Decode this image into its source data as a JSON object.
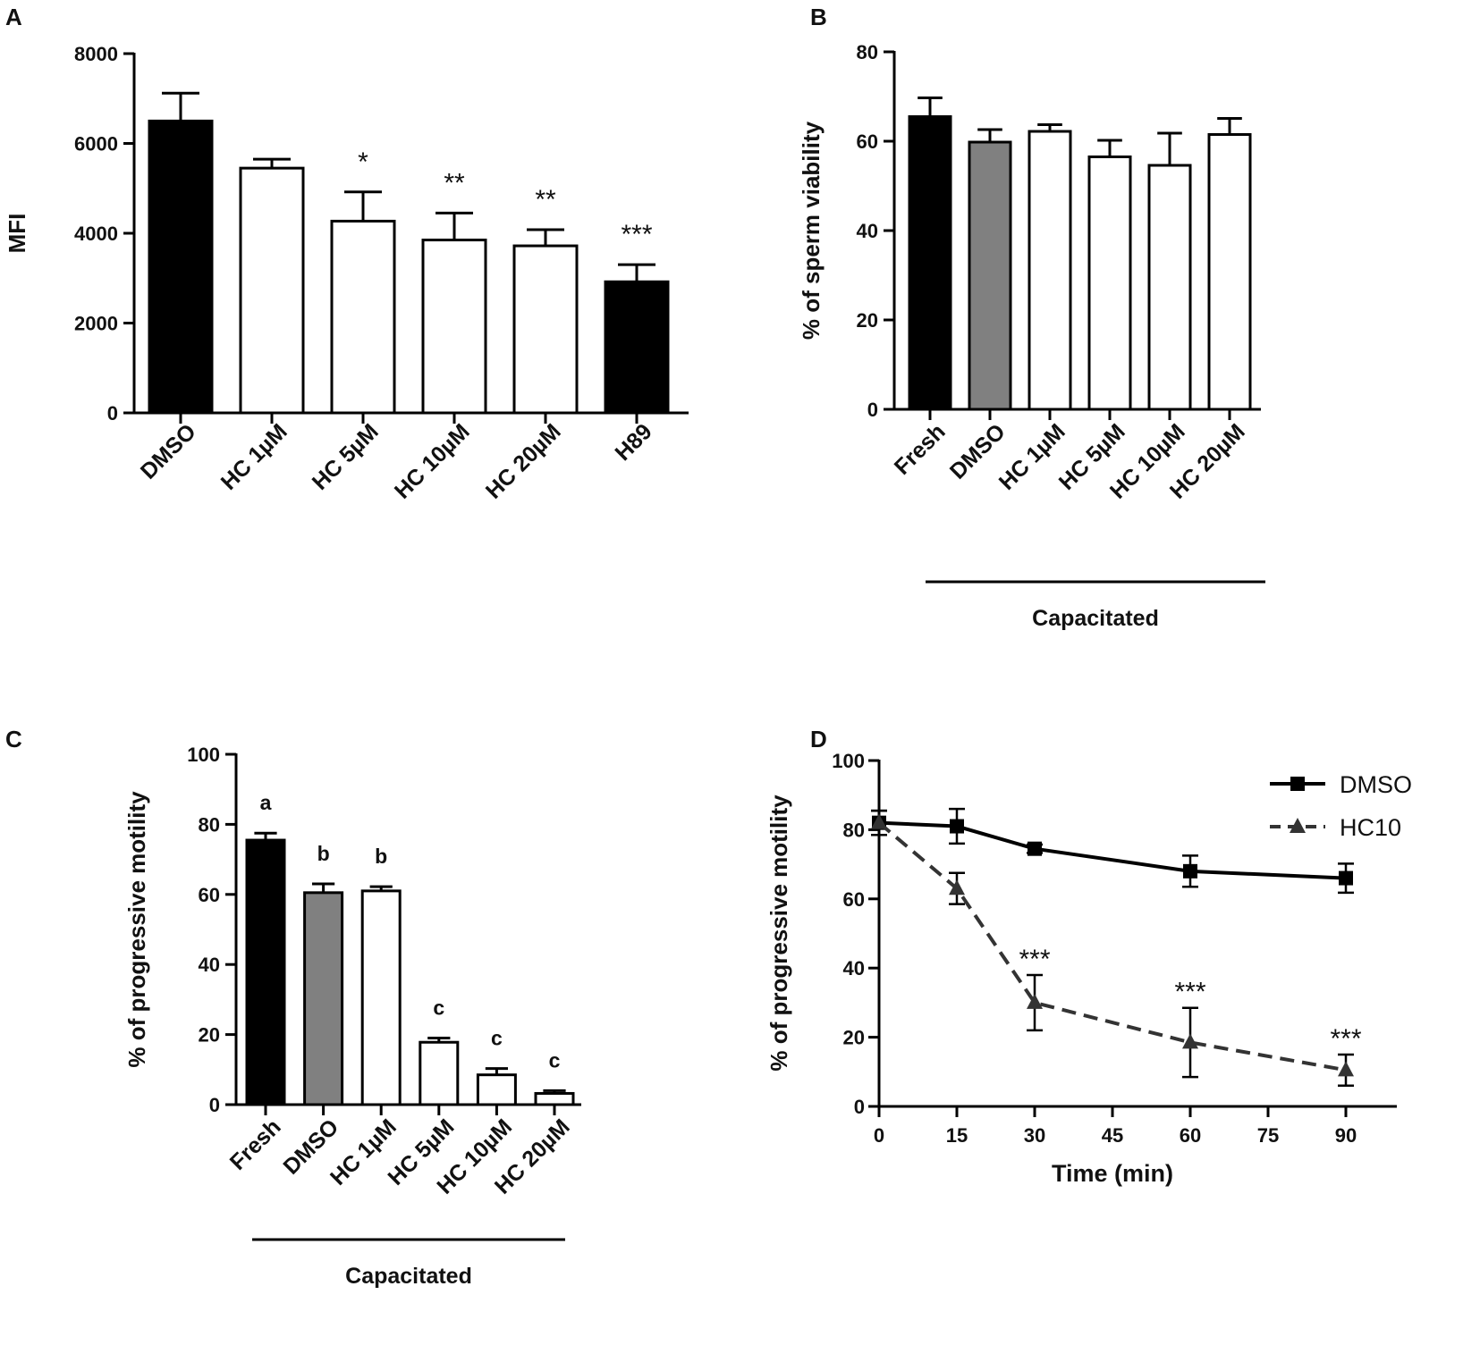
{
  "chart_data": [
    {
      "panel": "A",
      "type": "bar",
      "ylabel": "MFI",
      "xlabel": "",
      "ylim": [
        0,
        8000
      ],
      "yticks": [
        0,
        2000,
        4000,
        6000,
        8000
      ],
      "categories": [
        "DMSO",
        "HC 1µM",
        "HC 5µM",
        "HC 10µM",
        "HC 20µM",
        "H89"
      ],
      "values": [
        6500,
        5450,
        4270,
        3850,
        3720,
        2920
      ],
      "errors": [
        620,
        200,
        650,
        600,
        360,
        380
      ],
      "fills": [
        "#000000",
        "#ffffff",
        "#ffffff",
        "#ffffff",
        "#ffffff",
        "#000000"
      ],
      "annotations": [
        "",
        "",
        "*",
        "**",
        "**",
        "***"
      ]
    },
    {
      "panel": "B",
      "type": "bar",
      "ylabel": "% of sperm viability",
      "xlabel": "",
      "ylim": [
        0,
        80
      ],
      "yticks": [
        0,
        20,
        40,
        60,
        80
      ],
      "categories": [
        "Fresh",
        "DMSO",
        "HC 1µM",
        "HC 5µM",
        "HC 10µM",
        "HC 20µM"
      ],
      "values": [
        65.5,
        59.8,
        62.2,
        56.5,
        54.6,
        61.5
      ],
      "errors": [
        4.2,
        2.8,
        1.5,
        3.7,
        7.2,
        3.6
      ],
      "fills": [
        "#000000",
        "#808080",
        "#ffffff",
        "#ffffff",
        "#ffffff",
        "#ffffff"
      ],
      "group_label": "Capacitated"
    },
    {
      "panel": "C",
      "type": "bar",
      "ylabel": "% of progressive motility",
      "xlabel": "",
      "ylim": [
        0,
        100
      ],
      "yticks": [
        0,
        20,
        40,
        60,
        80,
        100
      ],
      "categories": [
        "Fresh",
        "DMSO",
        "HC 1µM",
        "HC 5µM",
        "HC 10µM",
        "HC 20µM"
      ],
      "values": [
        75.5,
        60.5,
        61.0,
        17.8,
        8.5,
        3.2
      ],
      "errors": [
        2.0,
        2.5,
        1.2,
        1.2,
        1.8,
        0.8
      ],
      "fills": [
        "#000000",
        "#808080",
        "#ffffff",
        "#ffffff",
        "#ffffff",
        "#ffffff"
      ],
      "annotations": [
        "a",
        "b",
        "b",
        "c",
        "c",
        "c"
      ],
      "group_label": "Capacitated"
    },
    {
      "panel": "D",
      "type": "line",
      "xlabel": "Time (min)",
      "ylabel": "% of progressive motility",
      "xlim": [
        0,
        100
      ],
      "ylim": [
        0,
        100
      ],
      "xticks": [
        0,
        15,
        30,
        45,
        60,
        75,
        90
      ],
      "yticks": [
        0,
        20,
        40,
        60,
        80,
        100
      ],
      "series": [
        {
          "name": "DMSO",
          "x": [
            0,
            15,
            30,
            60,
            90
          ],
          "y": [
            82,
            81,
            74.5,
            68,
            66
          ],
          "errors": [
            3.5,
            5,
            1.2,
            4.5,
            4.2
          ],
          "marker": "square",
          "dash": "solid",
          "color": "#000000"
        },
        {
          "name": "HC10",
          "x": [
            0,
            15,
            30,
            60,
            90
          ],
          "y": [
            82,
            63,
            30,
            18.5,
            10.5
          ],
          "errors": [
            3.5,
            4.5,
            8,
            10,
            4.5
          ],
          "marker": "triangle",
          "dash": "dashed",
          "color": "#333333"
        }
      ],
      "annotations": [
        {
          "x": 30,
          "y": 38,
          "text": "***"
        },
        {
          "x": 60,
          "y": 28.5,
          "text": "***"
        },
        {
          "x": 90,
          "y": 15,
          "text": "***"
        }
      ]
    }
  ]
}
